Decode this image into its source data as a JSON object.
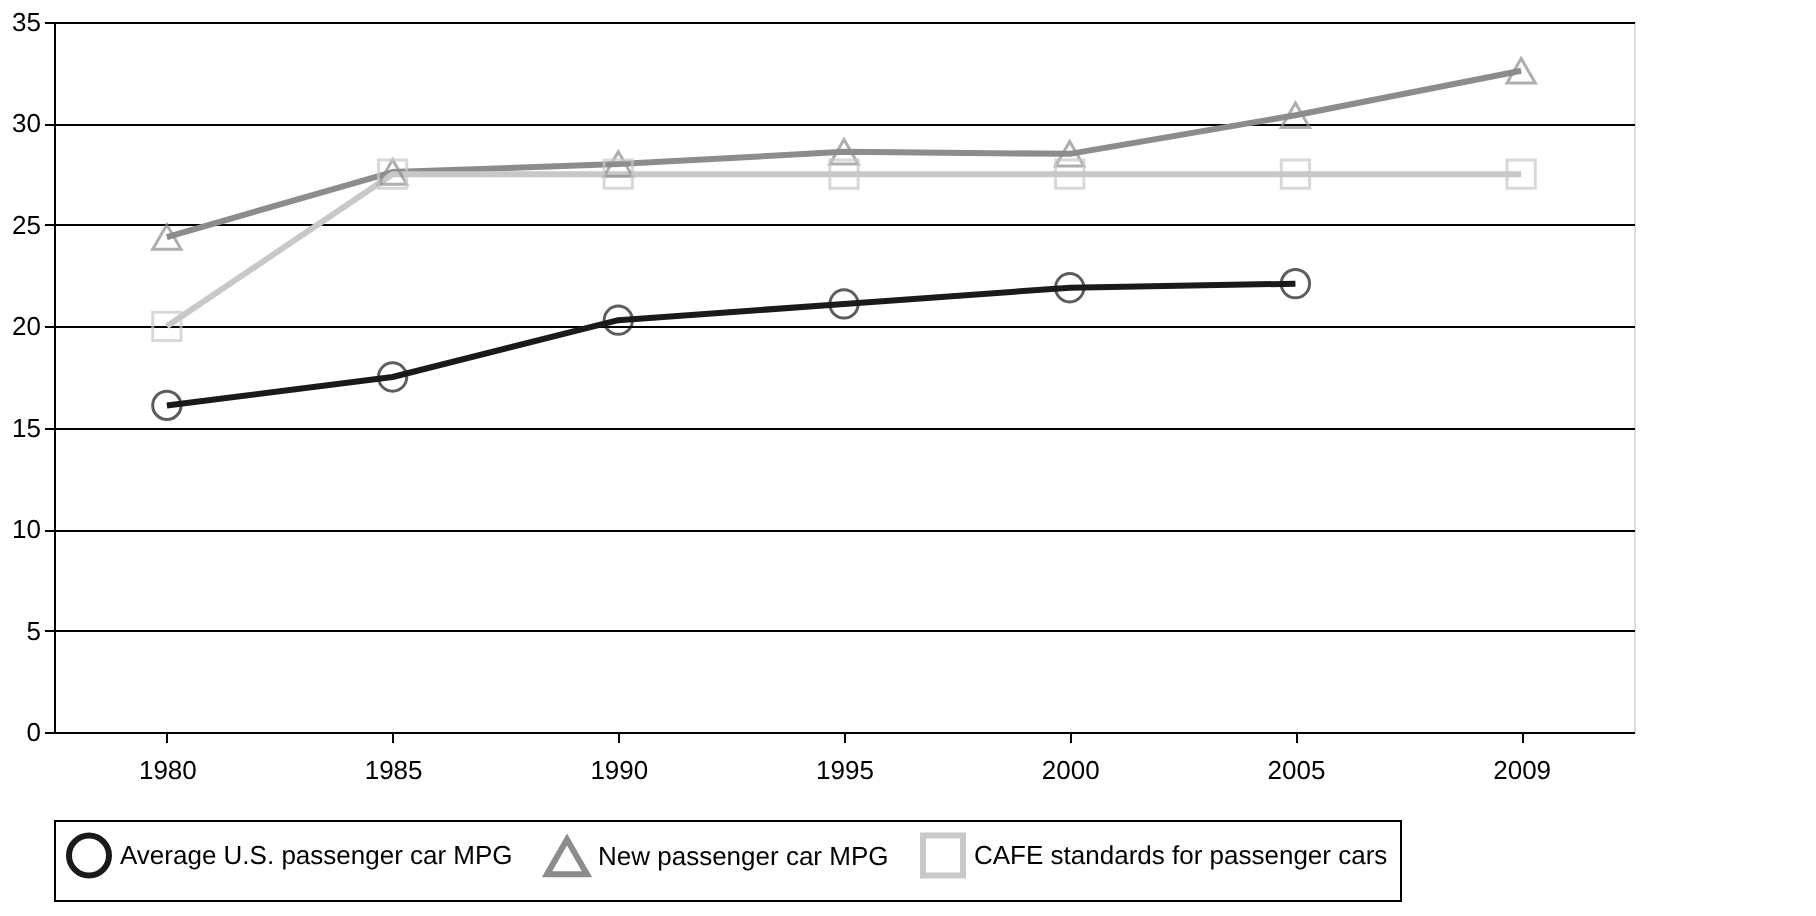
{
  "chart_data": {
    "type": "line",
    "categories": [
      "1980",
      "1985",
      "1990",
      "1995",
      "2000",
      "2005",
      "2009"
    ],
    "series": [
      {
        "name": "Average U.S. passenger car MPG",
        "color": "#1a1a1a",
        "marker": "circle",
        "values": [
          16.1,
          17.5,
          20.3,
          21.1,
          21.9,
          22.1,
          null
        ]
      },
      {
        "name": "New passenger car MPG",
        "color": "#8c8c8c",
        "marker": "triangle",
        "values": [
          24.4,
          27.6,
          28.0,
          28.6,
          28.5,
          30.4,
          32.6
        ]
      },
      {
        "name": "CAFE standards for passenger cars",
        "color": "#c8c8c8",
        "marker": "square",
        "values": [
          20.0,
          27.5,
          27.5,
          27.5,
          27.5,
          27.5,
          27.5
        ]
      }
    ],
    "ylim": [
      0,
      35
    ],
    "yticks": [
      0,
      5,
      10,
      15,
      20,
      25,
      30,
      35
    ],
    "grid": "y",
    "legend": "bottom",
    "line_style": "solid"
  }
}
